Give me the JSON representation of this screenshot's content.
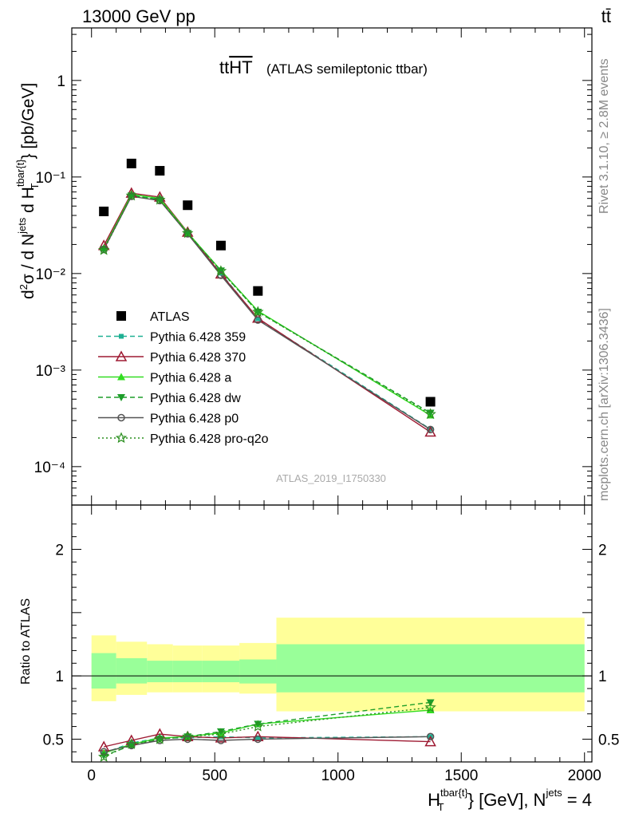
{
  "header": {
    "energy_label": "13000 GeV pp",
    "process_label": "tt̄"
  },
  "side_labels": {
    "rivet": "Rivet 3.1.10, ≥ 2.8M events",
    "mcplots": "mcplots.cern.ch [arXiv:1306.3436]"
  },
  "chart_data": [
    {
      "type": "scatter",
      "panel": "main",
      "title": "tt̄HT",
      "title_base": "tt",
      "title_overline": "HT",
      "subtitle": "(ATLAS semileptonic ttbar)",
      "watermark": "ATLAS_2019_I1750330",
      "ylabel": "d²σ / d N^jets d H_T^tbar{t} [pb/GeV]",
      "yscale": "log",
      "ylim": [
        4e-05,
        3.5
      ],
      "xlim": [
        -80,
        2030
      ],
      "y_tick_labels": [
        "10⁻⁴",
        "10⁻³",
        "10⁻²",
        "10⁻¹",
        "1"
      ],
      "x_bin_edges": [
        0,
        100,
        225,
        330,
        450,
        600,
        750,
        2000
      ],
      "series": [
        {
          "name": "ATLAS",
          "color": "#000000",
          "marker": "square",
          "line": "none",
          "x": [
            50,
            162,
            277,
            390,
            525,
            675,
            1375
          ],
          "y": [
            0.044,
            0.138,
            0.116,
            0.051,
            0.0195,
            0.0066,
            0.00047
          ]
        },
        {
          "name": "Pythia 6.428 359",
          "color": "#1fb093",
          "marker": "small-square",
          "line": "dashed",
          "x": [
            50,
            162,
            277,
            390,
            525,
            675,
            1375
          ],
          "y": [
            0.0182,
            0.065,
            0.059,
            0.026,
            0.0101,
            0.0034,
            0.000245
          ]
        },
        {
          "name": "Pythia 6.428 370",
          "color": "#9e1a32",
          "marker": "open-triangle",
          "line": "solid",
          "x": [
            50,
            162,
            277,
            390,
            525,
            675,
            1375
          ],
          "y": [
            0.0195,
            0.068,
            0.062,
            0.0268,
            0.0099,
            0.00345,
            0.000228
          ]
        },
        {
          "name": "Pythia 6.428 a",
          "color": "#33dd22",
          "marker": "triangle",
          "line": "solid",
          "x": [
            50,
            162,
            277,
            390,
            525,
            675,
            1375
          ],
          "y": [
            0.0183,
            0.066,
            0.06,
            0.0265,
            0.0108,
            0.0041,
            0.00034
          ]
        },
        {
          "name": "Pythia 6.428 dw",
          "color": "#1d9e2a",
          "marker": "triangle-down",
          "line": "dashed",
          "x": [
            50,
            162,
            277,
            390,
            525,
            675,
            1375
          ],
          "y": [
            0.0178,
            0.064,
            0.058,
            0.0262,
            0.0107,
            0.004,
            0.00036
          ]
        },
        {
          "name": "Pythia 6.428 p0",
          "color": "#555555",
          "marker": "open-circle",
          "line": "solid",
          "x": [
            50,
            162,
            277,
            390,
            525,
            675,
            1375
          ],
          "y": [
            0.0178,
            0.063,
            0.057,
            0.0258,
            0.0096,
            0.0033,
            0.000242
          ]
        },
        {
          "name": "Pythia 6.428 pro-q2o",
          "color": "#2a8f1e",
          "marker": "star",
          "line": "dotted",
          "x": [
            50,
            162,
            277,
            390,
            525,
            675,
            1375
          ],
          "y": [
            0.0175,
            0.064,
            0.058,
            0.0262,
            0.0106,
            0.004,
            0.00035
          ]
        }
      ],
      "legend_position": "left, mid-height"
    },
    {
      "type": "line",
      "panel": "ratio",
      "ylabel": "Ratio to ATLAS",
      "xlabel": "H_T^tbar{t} [GeV], N^jets = 4",
      "ylim": [
        0.32,
        2.35
      ],
      "xlim": [
        -80,
        2030
      ],
      "x_tick_labels": [
        "0",
        "500",
        "1000",
        "1500",
        "2000"
      ],
      "y_tick_labels": [
        "0.5",
        "1",
        "2"
      ],
      "reference_line": 1,
      "bands": {
        "x_edges": [
          0,
          100,
          225,
          330,
          450,
          600,
          750,
          2000
        ],
        "inner_color": "#99ff99",
        "outer_color": "#ffff99",
        "inner_lo": [
          0.9,
          0.94,
          0.95,
          0.95,
          0.95,
          0.94,
          0.87
        ],
        "inner_hi": [
          1.18,
          1.14,
          1.12,
          1.12,
          1.12,
          1.13,
          1.25
        ],
        "outer_lo": [
          0.8,
          0.85,
          0.87,
          0.87,
          0.87,
          0.86,
          0.72
        ],
        "outer_hi": [
          1.32,
          1.27,
          1.25,
          1.24,
          1.24,
          1.26,
          1.46
        ]
      },
      "series": [
        {
          "name": "Pythia 6.428 359",
          "x": [
            50,
            162,
            277,
            390,
            525,
            675,
            1375
          ],
          "y": [
            0.39,
            0.47,
            0.51,
            0.51,
            0.52,
            0.51,
            0.52
          ]
        },
        {
          "name": "Pythia 6.428 370",
          "x": [
            50,
            162,
            277,
            390,
            525,
            675,
            1375
          ],
          "y": [
            0.44,
            0.49,
            0.54,
            0.52,
            0.51,
            0.52,
            0.48
          ]
        },
        {
          "name": "Pythia 6.428 a",
          "x": [
            50,
            162,
            277,
            390,
            525,
            675,
            1375
          ],
          "y": [
            0.39,
            0.46,
            0.51,
            0.52,
            0.55,
            0.62,
            0.73
          ]
        },
        {
          "name": "Pythia 6.428 dw",
          "x": [
            50,
            162,
            277,
            390,
            525,
            675,
            1375
          ],
          "y": [
            0.37,
            0.45,
            0.5,
            0.52,
            0.56,
            0.62,
            0.79
          ]
        },
        {
          "name": "Pythia 6.428 p0",
          "x": [
            50,
            162,
            277,
            390,
            525,
            675,
            1375
          ],
          "y": [
            0.4,
            0.45,
            0.49,
            0.5,
            0.49,
            0.5,
            0.52
          ]
        },
        {
          "name": "Pythia 6.428 pro-q2o",
          "x": [
            50,
            162,
            277,
            390,
            525,
            675,
            1375
          ],
          "y": [
            0.36,
            0.46,
            0.5,
            0.52,
            0.54,
            0.6,
            0.75
          ]
        }
      ]
    }
  ]
}
